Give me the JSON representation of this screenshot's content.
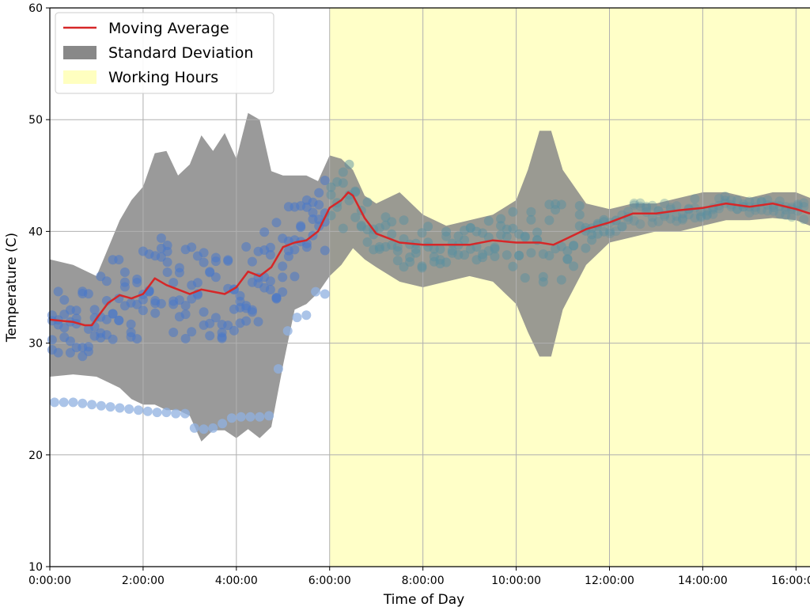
{
  "chart_data": {
    "type": "line",
    "title": "",
    "xlabel": "Time of Day",
    "ylabel": "Temperature (C)",
    "xlim_hours": [
      0,
      16.3
    ],
    "ylim": [
      10,
      60
    ],
    "grid": true,
    "legend_placement": "top-left",
    "x_tick_labels": [
      "0:00:00",
      "2:00:00",
      "4:00:00",
      "6:00:00",
      "8:00:00",
      "10:00:00",
      "12:00:00",
      "14:00:00",
      "16:00:00"
    ],
    "x_tick_hours": [
      0,
      2,
      4,
      6,
      8,
      10,
      12,
      14,
      16
    ],
    "y_tick_labels": [
      "10",
      "20",
      "30",
      "40",
      "50",
      "60"
    ],
    "y_tick_values": [
      10,
      20,
      30,
      40,
      50,
      60
    ],
    "working_hours": {
      "start_hour": 6,
      "end_hour": 16.3,
      "color": "#ffffc8"
    },
    "legend": [
      {
        "label": "Moving Average",
        "kind": "line",
        "color": "#d62728"
      },
      {
        "label": "Standard Deviation",
        "kind": "patch",
        "color": "#888888"
      },
      {
        "label": "Working Hours",
        "kind": "patch",
        "color": "#ffffc0"
      }
    ],
    "series": [
      {
        "name": "Moving Average",
        "color": "#d62728",
        "x_hours": [
          0,
          0.25,
          0.5,
          0.75,
          0.9,
          1.0,
          1.25,
          1.5,
          1.75,
          2.0,
          2.25,
          2.5,
          2.75,
          3.0,
          3.25,
          3.5,
          3.75,
          4.0,
          4.25,
          4.5,
          4.75,
          5.0,
          5.25,
          5.5,
          5.75,
          6.0,
          6.25,
          6.4,
          6.5,
          6.75,
          7.0,
          7.5,
          8.0,
          8.5,
          9.0,
          9.5,
          10.0,
          10.5,
          10.8,
          11.0,
          11.5,
          12.0,
          12.5,
          13.0,
          13.5,
          14.0,
          14.5,
          15.0,
          15.5,
          16.0,
          16.3
        ],
        "y": [
          32.1,
          32.0,
          31.9,
          31.6,
          31.6,
          32.2,
          33.6,
          34.3,
          34.0,
          34.4,
          35.8,
          35.2,
          34.8,
          34.4,
          34.8,
          34.6,
          34.4,
          35.0,
          36.4,
          36.0,
          36.8,
          38.6,
          39.0,
          39.2,
          40.0,
          42.1,
          42.8,
          43.5,
          43.2,
          41.2,
          39.8,
          39.0,
          38.8,
          38.8,
          38.8,
          39.2,
          39.0,
          39.0,
          38.8,
          39.2,
          40.2,
          40.8,
          41.6,
          41.6,
          41.9,
          42.1,
          42.5,
          42.2,
          42.5,
          42.0,
          41.6
        ]
      },
      {
        "name": "Standard Deviation",
        "color": "#888888",
        "x_hours": [
          0,
          0.5,
          1.0,
          1.25,
          1.5,
          1.75,
          2.0,
          2.25,
          2.5,
          2.75,
          3.0,
          3.25,
          3.5,
          3.75,
          4.0,
          4.25,
          4.5,
          4.75,
          5.0,
          5.25,
          5.5,
          5.75,
          6.0,
          6.25,
          6.5,
          6.75,
          7.0,
          7.5,
          8.0,
          8.5,
          9.0,
          9.5,
          10.0,
          10.25,
          10.5,
          10.75,
          11.0,
          11.5,
          12.0,
          12.5,
          13.0,
          13.5,
          14.0,
          14.5,
          15.0,
          15.5,
          16.0,
          16.3
        ],
        "upper": [
          37.5,
          37.0,
          36.0,
          38.5,
          41.0,
          42.8,
          44.0,
          47.0,
          47.2,
          45.0,
          46.0,
          48.6,
          47.2,
          48.8,
          46.5,
          50.6,
          50.0,
          45.4,
          45.0,
          45.0,
          45.0,
          44.5,
          46.8,
          46.5,
          45.5,
          43.2,
          42.5,
          43.5,
          41.5,
          40.5,
          41.0,
          41.5,
          42.8,
          45.5,
          49.0,
          49.0,
          45.5,
          42.5,
          42.0,
          42.5,
          42.5,
          43.0,
          43.5,
          43.5,
          43.0,
          43.5,
          43.5,
          43.0
        ],
        "lower": [
          27.0,
          27.2,
          27.0,
          26.5,
          26.0,
          25.0,
          24.5,
          24.5,
          24.0,
          24.0,
          23.5,
          21.2,
          22.2,
          22.2,
          21.5,
          22.3,
          21.5,
          22.5,
          28.0,
          33.0,
          33.5,
          34.5,
          36.0,
          37.0,
          38.5,
          37.5,
          36.8,
          35.5,
          35.0,
          35.5,
          36.0,
          35.5,
          33.5,
          31.0,
          28.8,
          28.8,
          33.0,
          37.0,
          39.0,
          39.5,
          40.0,
          40.0,
          40.5,
          41.0,
          41.0,
          41.2,
          41.0,
          40.5
        ]
      },
      {
        "name": "",
        "kind": "scatter-low",
        "color": "#4f7fc6",
        "x_hours": [
          0.1,
          0.3,
          0.5,
          0.7,
          0.9,
          1.1,
          1.3,
          1.5,
          1.7,
          1.9,
          2.1,
          2.3,
          2.5,
          2.7,
          2.9,
          3.1,
          3.3,
          3.5,
          3.7,
          3.9,
          4.1,
          4.3,
          4.5,
          4.7,
          4.9,
          5.1,
          5.3,
          5.5,
          5.7,
          5.9
        ],
        "y": [
          24.7,
          24.7,
          24.7,
          24.6,
          24.5,
          24.4,
          24.3,
          24.2,
          24.1,
          24.0,
          23.9,
          23.8,
          23.8,
          23.7,
          23.7,
          22.4,
          22.3,
          22.4,
          22.8,
          23.3,
          23.4,
          23.4,
          23.4,
          23.5,
          27.7,
          31.1,
          32.3,
          32.5,
          34.6,
          34.4
        ]
      }
    ]
  }
}
